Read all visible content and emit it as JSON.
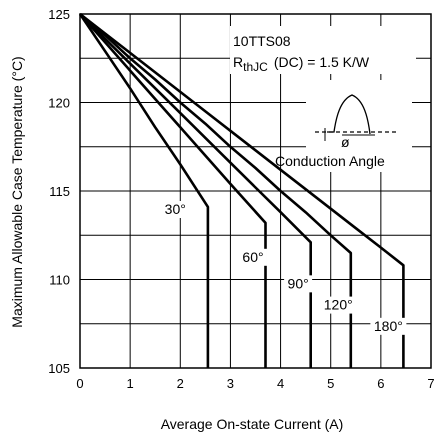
{
  "chart_data": {
    "type": "line",
    "xlabel": "Average On-state Current (A)",
    "ylabel": "Maximum Allowable Case Temperature (°C)",
    "xlim": [
      0,
      7
    ],
    "ylim": [
      105,
      125
    ],
    "xticks": [
      0,
      1,
      2,
      3,
      4,
      5,
      6,
      7
    ],
    "yticks": [
      105,
      110,
      115,
      120,
      125
    ],
    "grid": true,
    "annotation": {
      "device": "10TTS08",
      "rth_main": "R",
      "rth_sub": "thJC",
      "rth_rest": "(DC) = 1.5 K/W",
      "inset_phi": "ø",
      "inset_label": "Conduction Angle"
    },
    "series": [
      {
        "name": "30°",
        "x": [
          0,
          0.5,
          1,
          1.5,
          2,
          2.55,
          2.55
        ],
        "y": [
          125,
          122.9,
          120.8,
          118.6,
          116.5,
          114.1,
          105
        ]
      },
      {
        "name": "60°",
        "x": [
          0,
          0.5,
          1,
          1.5,
          2,
          2.5,
          3,
          3.7,
          3.7
        ],
        "y": [
          125,
          123.4,
          121.8,
          120.2,
          118.6,
          117,
          115.4,
          113.2,
          105
        ]
      },
      {
        "name": "90°",
        "x": [
          0,
          0.5,
          1,
          1.5,
          2,
          2.5,
          3,
          3.5,
          4,
          4.6,
          4.6
        ],
        "y": [
          125,
          123.6,
          122.2,
          120.8,
          119.4,
          118,
          116.6,
          115.2,
          113.8,
          112.1,
          105
        ]
      },
      {
        "name": "120°",
        "x": [
          0,
          0.5,
          1,
          1.5,
          2,
          2.5,
          3,
          3.5,
          4,
          4.5,
          5,
          5.4,
          5.4
        ],
        "y": [
          125,
          123.8,
          122.5,
          121.3,
          120,
          118.8,
          117.5,
          116.3,
          115,
          113.8,
          112.5,
          111.5,
          105
        ]
      },
      {
        "name": "180°",
        "x": [
          0,
          0.5,
          1,
          1.5,
          2,
          2.5,
          3,
          3.5,
          4,
          4.5,
          5,
          5.5,
          6,
          6.45,
          6.45
        ],
        "y": [
          125,
          123.9,
          122.8,
          121.7,
          120.6,
          119.5,
          118.4,
          117.3,
          116.2,
          115.1,
          114,
          112.9,
          111.8,
          110.8,
          105
        ]
      }
    ]
  }
}
